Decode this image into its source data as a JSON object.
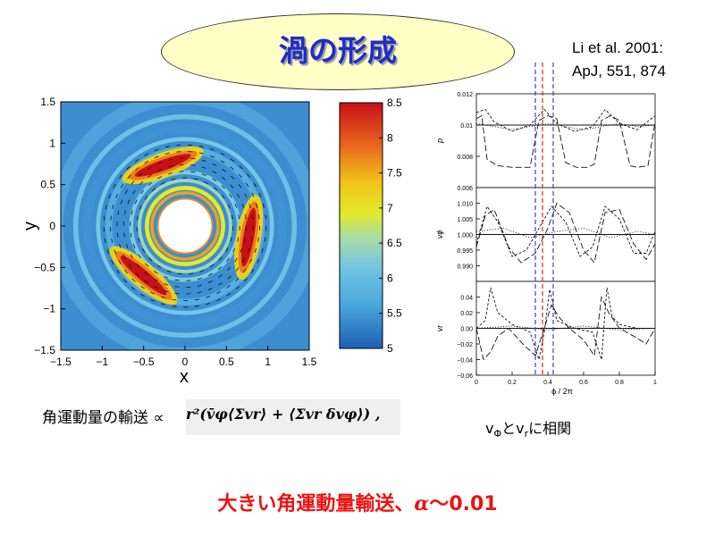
{
  "slide": {
    "title": "渦の形成",
    "reference_line1": "Li et al. 2001:",
    "reference_line2": "ApJ, 551, 874",
    "momentum_label": "角運動量の輸送 ∝",
    "formula": "r²(v̄φ⟨Σvr⟩ + ⟨Σvr δvφ⟩) ,",
    "correlation_parts": [
      "v",
      "Φ",
      "とv",
      "r",
      "に相関"
    ],
    "conclusion_main": "大きい角運動量輸送、",
    "conclusion_alpha": "α",
    "conclusion_value": "～0.01"
  },
  "colors": {
    "title_text": "#1e2ccc",
    "title_oval_fill": "#ffffc6",
    "conclusion_text": "#ee1111",
    "marker_blue": "#3344cc",
    "marker_red": "#dd2222"
  },
  "chart_data": [
    {
      "type": "heatmap",
      "title": "",
      "xlabel": "x",
      "ylabel": "y",
      "xlim": [
        -1.5,
        1.5
      ],
      "ylim": [
        -1.5,
        1.5
      ],
      "xticks": [
        "−1.5",
        "−1",
        "−0.5",
        "0",
        "0.5",
        "1",
        "1.5"
      ],
      "yticks": [
        "1.5",
        "1",
        "0.5",
        "0",
        "−0.5",
        "−1",
        "−1.5"
      ],
      "colorbar": {
        "min": 5,
        "max": 8.5,
        "ticks": [
          "8.5",
          "8",
          "7.5",
          "7",
          "6.5",
          "6",
          "5.5",
          "5"
        ]
      },
      "description_values": {
        "inner_hole_radius": 0.33,
        "vortex_ring_radius": 0.78,
        "vortex_count": 3,
        "background_level": 6.2,
        "vortex_peak": 8.5
      }
    },
    {
      "type": "line",
      "title": "",
      "xlabel": "ϕ / 2π",
      "xlim": [
        0,
        1
      ],
      "xticks": [
        "0",
        "0.2",
        "0.4",
        "0.6",
        "0.8",
        "1"
      ],
      "vertical_markers": [
        {
          "x": 0.33,
          "color": "blue"
        },
        {
          "x": 0.37,
          "color": "red"
        },
        {
          "x": 0.43,
          "color": "blue"
        }
      ],
      "panels": [
        {
          "ylabel": "p",
          "ylim": [
            0.006,
            0.012
          ],
          "yticks": [
            "0.012",
            "0.01",
            "0.008",
            "0.006"
          ],
          "series": [
            {
              "style": "solid",
              "x": [
                0,
                1
              ],
              "y": [
                0.01,
                0.01
              ]
            },
            {
              "style": "long-dash",
              "x": [
                0,
                0.03,
                0.06,
                0.12,
                0.2,
                0.3,
                0.35,
                0.4,
                0.45,
                0.5,
                0.56,
                0.62,
                0.66,
                0.7,
                0.75,
                0.8,
                0.86,
                0.9,
                0.96,
                1.0
              ],
              "y": [
                0.0104,
                0.0106,
                0.0078,
                0.0074,
                0.0073,
                0.0073,
                0.0103,
                0.0106,
                0.0104,
                0.0076,
                0.0073,
                0.0073,
                0.0075,
                0.0103,
                0.0106,
                0.0103,
                0.0074,
                0.0073,
                0.0074,
                0.0102
              ]
            },
            {
              "style": "short-dash",
              "x": [
                0,
                0.05,
                0.1,
                0.2,
                0.3,
                0.38,
                0.45,
                0.55,
                0.65,
                0.72,
                0.8,
                0.9,
                1.0
              ],
              "y": [
                0.0108,
                0.011,
                0.0102,
                0.0096,
                0.01,
                0.011,
                0.0101,
                0.0096,
                0.0099,
                0.011,
                0.0101,
                0.0097,
                0.0106
              ]
            },
            {
              "style": "dotted",
              "x": [
                0,
                0.1,
                0.2,
                0.3,
                0.4,
                0.5,
                0.6,
                0.7,
                0.8,
                0.9,
                1.0
              ],
              "y": [
                0.0101,
                0.0099,
                0.0097,
                0.0099,
                0.0101,
                0.0099,
                0.0097,
                0.0099,
                0.0101,
                0.0099,
                0.01
              ]
            }
          ]
        },
        {
          "ylabel": "vϕ",
          "ylim": [
            0.985,
            1.015
          ],
          "yticks": [
            "1.010",
            "1.005",
            "1.000",
            "0.995",
            "0.990"
          ],
          "series": [
            {
              "style": "solid",
              "x": [
                0,
                1
              ],
              "y": [
                1.0,
                1.0
              ]
            },
            {
              "style": "long-dash",
              "x": [
                0,
                0.05,
                0.1,
                0.18,
                0.25,
                0.33,
                0.4,
                0.45,
                0.52,
                0.6,
                0.66,
                0.72,
                0.8,
                0.88,
                0.95,
                1.0
              ],
              "y": [
                0.996,
                1.006,
                1.008,
                0.996,
                0.991,
                0.994,
                1.002,
                1.01,
                1.007,
                0.995,
                0.991,
                1.007,
                1.008,
                0.997,
                0.992,
                0.997
              ]
            },
            {
              "style": "short-dash",
              "x": [
                0,
                0.06,
                0.12,
                0.2,
                0.28,
                0.36,
                0.42,
                0.5,
                0.58,
                0.65,
                0.72,
                0.8,
                0.88,
                0.95,
                1.0
              ],
              "y": [
                0.997,
                1.009,
                1.004,
                0.993,
                0.995,
                1.003,
                1.009,
                1.004,
                0.993,
                0.996,
                1.009,
                1.005,
                0.994,
                0.994,
                1.001
              ]
            },
            {
              "style": "dotted",
              "x": [
                0,
                0.15,
                0.3,
                0.45,
                0.6,
                0.75,
                0.9,
                1.0
              ],
              "y": [
                1.001,
                1.002,
                0.999,
                1.001,
                1.002,
                0.999,
                1.001,
                1.0
              ]
            }
          ]
        },
        {
          "ylabel": "vr",
          "ylim": [
            -0.06,
            0.06
          ],
          "yticks": [
            "0.04",
            "0.02",
            "0.00",
            "−0.02",
            "−0.04",
            "−0.06"
          ],
          "series": [
            {
              "style": "solid",
              "x": [
                0,
                1
              ],
              "y": [
                0.0,
                0.0
              ]
            },
            {
              "style": "long-dash",
              "x": [
                0,
                0.04,
                0.08,
                0.12,
                0.18,
                0.26,
                0.33,
                0.38,
                0.42,
                0.46,
                0.52,
                0.6,
                0.66,
                0.7,
                0.74,
                0.8,
                0.88,
                0.95,
                1.0
              ],
              "y": [
                0.0,
                -0.04,
                -0.03,
                -0.01,
                0.0,
                -0.02,
                -0.035,
                0.0,
                0.03,
                0.015,
                0.0,
                -0.015,
                -0.035,
                0.04,
                0.02,
                0.0,
                -0.01,
                -0.02,
                0.0
              ]
            },
            {
              "style": "short-dash",
              "x": [
                0,
                0.05,
                0.08,
                0.12,
                0.2,
                0.3,
                0.35,
                0.38,
                0.41,
                0.45,
                0.55,
                0.65,
                0.7,
                0.73,
                0.76,
                0.8,
                0.9,
                1.0
              ],
              "y": [
                0.0,
                0.01,
                0.052,
                0.02,
                0.005,
                -0.005,
                -0.04,
                -0.005,
                0.05,
                0.01,
                0.0,
                -0.005,
                -0.04,
                0.052,
                0.015,
                0.005,
                0.0,
                0.0
              ]
            },
            {
              "style": "dotted",
              "x": [
                0,
                0.2,
                0.4,
                0.6,
                0.8,
                1.0
              ],
              "y": [
                0.0,
                0.003,
                -0.002,
                0.003,
                -0.002,
                0.0
              ]
            }
          ]
        }
      ]
    }
  ]
}
